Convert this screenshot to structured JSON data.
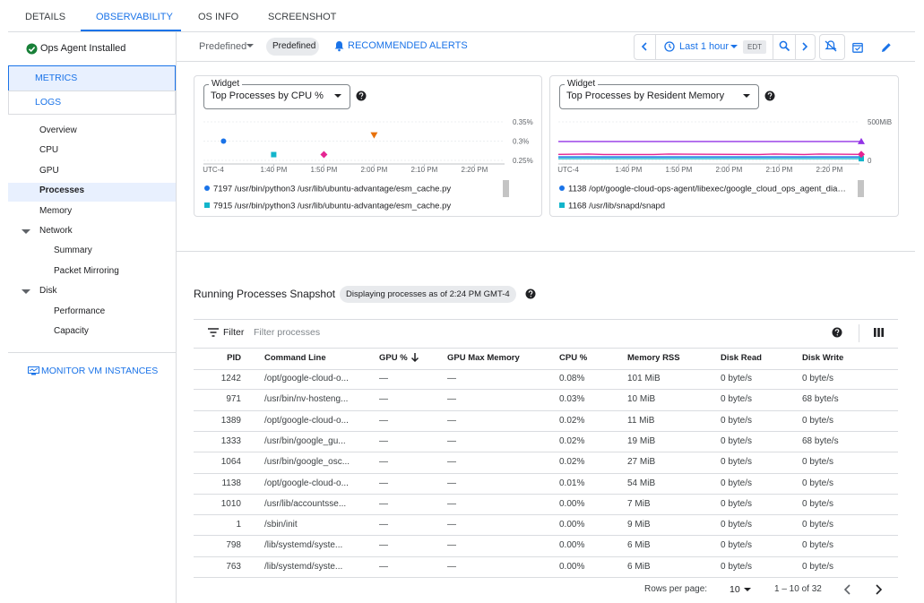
{
  "tabs": [
    "DETAILS",
    "OBSERVABILITY",
    "OS INFO",
    "SCREENSHOT"
  ],
  "sidebar": {
    "agent_status": "Ops Agent Installed",
    "sections": [
      "METRICS",
      "LOGS"
    ],
    "nav": [
      {
        "label": "Overview"
      },
      {
        "label": "CPU"
      },
      {
        "label": "GPU"
      },
      {
        "label": "Processes"
      },
      {
        "label": "Memory"
      },
      {
        "label": "Network",
        "children": [
          "Summary",
          "Packet Mirroring"
        ]
      },
      {
        "label": "Disk",
        "children": [
          "Performance",
          "Capacity"
        ]
      }
    ],
    "monitor_link": "MONITOR VM INSTANCES"
  },
  "toolbar": {
    "view_dropdown": "Predefined",
    "view_chip": "Predefined",
    "alerts_button": "RECOMMENDED ALERTS",
    "time_range": "Last 1 hour",
    "timezone": "EDT"
  },
  "widgets": [
    {
      "label": "Widget",
      "title": "Top Processes by CPU %",
      "chart": {
        "type": "scatter",
        "timezone_label": "UTC-4",
        "xlim": [
          26,
          86
        ],
        "xticks": [
          {
            "value": 40,
            "label": "1:40 PM"
          },
          {
            "value": 50,
            "label": "1:50 PM"
          },
          {
            "value": 60,
            "label": "2:00 PM"
          },
          {
            "value": 70,
            "label": "2:10 PM"
          },
          {
            "value": 80,
            "label": "2:20 PM"
          }
        ],
        "ylim": [
          0.25,
          0.35
        ],
        "yticks": [
          {
            "value": 0.35,
            "label": "0.35%"
          },
          {
            "value": 0.3,
            "label": "0.3%"
          },
          {
            "value": 0.25,
            "label": "0.25%"
          }
        ],
        "series": [
          {
            "name": "7197 /usr/bin/python3 /usr/lib/ubuntu-advantage/esm_cache.py",
            "color": "#1a73e8",
            "marker": "circle",
            "x": [
              30
            ],
            "values": [
              0.3
            ]
          },
          {
            "name": "7915 /usr/bin/python3 /usr/lib/ubuntu-advantage/esm_cache.py",
            "color": "#12b5cb",
            "marker": "square",
            "x": [
              40
            ],
            "values": [
              0.265
            ]
          },
          {
            "color": "#e52592",
            "marker": "diamond",
            "x": [
              50
            ],
            "values": [
              0.265
            ]
          },
          {
            "color": "#e8710a",
            "marker": "triangle-down",
            "x": [
              60
            ],
            "values": [
              0.316
            ]
          }
        ]
      }
    },
    {
      "label": "Widget",
      "title": "Top Processes by Resident Memory",
      "chart": {
        "type": "line",
        "timezone_label": "UTC-4",
        "xlim": [
          26,
          86
        ],
        "xticks": [
          {
            "value": 40,
            "label": "1:40 PM"
          },
          {
            "value": 50,
            "label": "1:50 PM"
          },
          {
            "value": 60,
            "label": "2:00 PM"
          },
          {
            "value": 70,
            "label": "2:10 PM"
          },
          {
            "value": 80,
            "label": "2:20 PM"
          }
        ],
        "ylim": [
          0,
          500
        ],
        "yticks": [
          {
            "value": 500,
            "label": "500MiB"
          },
          0
        ],
        "series": [
          {
            "name": "1138 /opt/google-cloud-ops-agent/libexec/google_cloud_ops_agent_dia…",
            "color": "#1a73e8",
            "x": [
              26,
              86
            ],
            "values": [
              45,
              45
            ]
          },
          {
            "name": "1168 /usr/lib/snapd/snapd",
            "color": "#12b5cb",
            "marker": "square",
            "x": [
              26,
              86
            ],
            "values": [
              22,
              22
            ]
          },
          {
            "color": "#9334e6",
            "marker": "triangle-up",
            "x": [
              26,
              86
            ],
            "values": [
              245,
              245
            ]
          },
          {
            "color": "#e52592",
            "marker": "diamond",
            "x": [
              26,
              32,
              35,
              45,
              48,
              66,
              69,
              75,
              78,
              86
            ],
            "values": [
              78,
              82,
              76,
              76,
              82,
              76,
              82,
              76,
              82,
              78
            ]
          }
        ]
      }
    }
  ],
  "snapshot": {
    "title": "Running Processes Snapshot",
    "timestamp": "Displaying processes as of 2:24 PM GMT-4",
    "filter_label": "Filter",
    "filter_placeholder": "Filter processes",
    "columns": [
      "PID",
      "Command Line",
      "GPU %",
      "GPU Max Memory",
      "CPU %",
      "Memory RSS",
      "Disk Read",
      "Disk Write"
    ],
    "rows": [
      [
        1242,
        "/opt/google-cloud-o...",
        "—",
        "—",
        "0.08%",
        "101 MiB",
        "0 byte/s",
        "0 byte/s"
      ],
      [
        971,
        "/usr/bin/nv-hosteng...",
        "—",
        "—",
        "0.03%",
        "10 MiB",
        "0 byte/s",
        "68 byte/s"
      ],
      [
        1389,
        "/opt/google-cloud-o...",
        "—",
        "—",
        "0.02%",
        "11 MiB",
        "0 byte/s",
        "0 byte/s"
      ],
      [
        1333,
        "/usr/bin/google_gu...",
        "—",
        "—",
        "0.02%",
        "19 MiB",
        "0 byte/s",
        "68 byte/s"
      ],
      [
        1064,
        "/usr/bin/google_osc...",
        "—",
        "—",
        "0.02%",
        "27 MiB",
        "0 byte/s",
        "0 byte/s"
      ],
      [
        1138,
        "/opt/google-cloud-o...",
        "—",
        "—",
        "0.01%",
        "54 MiB",
        "0 byte/s",
        "0 byte/s"
      ],
      [
        1010,
        "/usr/lib/accountsse...",
        "—",
        "—",
        "0.00%",
        "7 MiB",
        "0 byte/s",
        "0 byte/s"
      ],
      [
        1,
        "/sbin/init",
        "—",
        "—",
        "0.00%",
        "9 MiB",
        "0 byte/s",
        "0 byte/s"
      ],
      [
        798,
        "/lib/systemd/syste...",
        "—",
        "—",
        "0.00%",
        "6 MiB",
        "0 byte/s",
        "0 byte/s"
      ],
      [
        763,
        "/lib/systemd/syste...",
        "—",
        "—",
        "0.00%",
        "6 MiB",
        "0 byte/s",
        "0 byte/s"
      ]
    ]
  },
  "pagination": {
    "rows_per_page_label": "Rows per page:",
    "rows_per_page": 10,
    "range": "1 – 10 of 32"
  }
}
